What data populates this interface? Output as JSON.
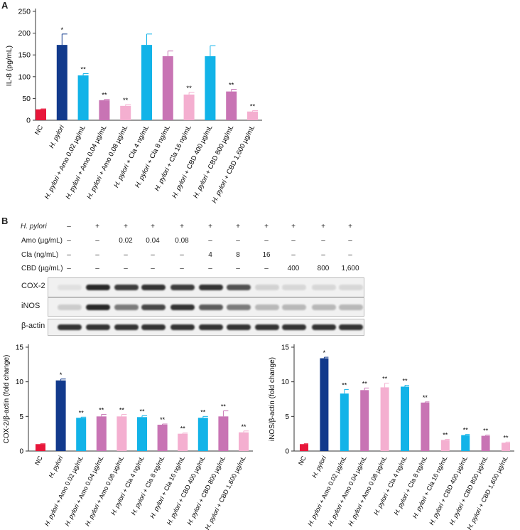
{
  "panel_a": {
    "label": "A"
  },
  "panel_b": {
    "label": "B"
  },
  "colors": {
    "red": "#e8163a",
    "navy": "#123a8c",
    "cyan": "#12b3e8",
    "magenta": "#c874b4",
    "pink": "#f4afd0"
  },
  "groups": [
    "NC",
    "H. pylori",
    "H. pylori + Amo 0.02 µg/mL",
    "H. pylori + Amo 0.04 µg/mL",
    "H. pylori + Amo 0.08 µg/mL",
    "H. pylori + Cla 4 ng/mL",
    "H. pylori + Cla 8 ng/mL",
    "H. pylori + Cla 16 ng/mL",
    "H. pylori + CBD 400 µg/mL",
    "H. pylori + CBD 800 µg/mL",
    "H. pylori + CBD 1,600 µg/mL"
  ],
  "bar_colors": [
    "red",
    "navy",
    "cyan",
    "magenta",
    "pink",
    "cyan",
    "magenta",
    "pink",
    "cyan",
    "magenta",
    "pink"
  ],
  "blot": {
    "treatment_rows": [
      {
        "label": "H. pylori",
        "values": [
          "–",
          "+",
          "+",
          "+",
          "+",
          "+",
          "+",
          "+",
          "+",
          "+",
          "+"
        ]
      },
      {
        "label": "Amo (µg/mL)",
        "values": [
          "–",
          "–",
          "0.02",
          "0.04",
          "0.08",
          "–",
          "–",
          "–",
          "–",
          "–",
          "–"
        ]
      },
      {
        "label": "Cla (ng/mL)",
        "values": [
          "–",
          "–",
          "–",
          "–",
          "–",
          "4",
          "8",
          "16",
          "–",
          "–",
          "–"
        ]
      },
      {
        "label": "CBD (µg/mL)",
        "values": [
          "–",
          "–",
          "–",
          "–",
          "–",
          "–",
          "–",
          "–",
          "400",
          "800",
          "1,600"
        ]
      }
    ],
    "strips": [
      {
        "label": "COX-2",
        "intensity": [
          0.05,
          0.95,
          0.85,
          0.9,
          0.85,
          0.9,
          0.75,
          0.12,
          0.1,
          0.1,
          0.1
        ]
      },
      {
        "label": "iNOS",
        "intensity": [
          0.15,
          0.95,
          0.55,
          0.8,
          0.9,
          0.7,
          0.55,
          0.25,
          0.25,
          0.25,
          0.25
        ]
      },
      {
        "label": "β-actin",
        "intensity": [
          0.9,
          0.9,
          0.9,
          0.9,
          0.9,
          0.9,
          0.9,
          0.9,
          0.9,
          0.9,
          0.9
        ]
      }
    ]
  },
  "chart_data": [
    {
      "type": "bar",
      "ylabel": "IL-8 (pg/mL)",
      "ylim": [
        0,
        250
      ],
      "yticks": [
        0,
        50,
        100,
        150,
        200,
        250
      ],
      "values": [
        25,
        173,
        103,
        46,
        33,
        173,
        147,
        59,
        147,
        66,
        20
      ],
      "errors": [
        1,
        25,
        4,
        2,
        3,
        25,
        12,
        5,
        24,
        5,
        2
      ],
      "significance": [
        "",
        "*",
        "**",
        "**",
        "**",
        "",
        "",
        "**",
        "",
        "**",
        "**"
      ]
    },
    {
      "type": "bar",
      "ylabel": "COX-2/β-actin (fold change)",
      "ylim": [
        0,
        15
      ],
      "yticks": [
        0,
        5,
        10,
        15
      ],
      "values": [
        1.0,
        10.2,
        4.8,
        5.0,
        5.0,
        4.9,
        3.8,
        2.5,
        4.8,
        5.0,
        2.7
      ],
      "errors": [
        0.05,
        0.2,
        0.1,
        0.3,
        0.3,
        0.2,
        0.1,
        0.1,
        0.2,
        0.8,
        0.2
      ],
      "significance": [
        "",
        "*",
        "**",
        "**",
        "**",
        "**",
        "**",
        "**",
        "**",
        "**",
        "**"
      ]
    },
    {
      "type": "bar",
      "ylabel": "iNOS/β-actin (fold change)",
      "ylim": [
        0,
        15
      ],
      "yticks": [
        0,
        5,
        10,
        15
      ],
      "values": [
        1.0,
        13.4,
        8.3,
        8.8,
        9.2,
        9.3,
        7.0,
        1.6,
        2.3,
        2.2,
        1.2
      ],
      "errors": [
        0.05,
        0.15,
        0.6,
        0.3,
        0.6,
        0.2,
        0.1,
        0.1,
        0.1,
        0.1,
        0.1
      ],
      "significance": [
        "",
        "*",
        "**",
        "**",
        "**",
        "**",
        "**",
        "**",
        "**",
        "**",
        "**"
      ]
    }
  ]
}
